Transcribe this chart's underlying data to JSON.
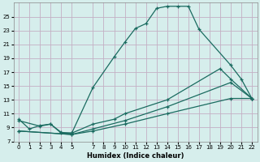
{
  "xlabel": "Humidex (Indice chaleur)",
  "bg_color": "#d6eeec",
  "grid_color": "#c4afc4",
  "line_color": "#1a6b60",
  "xlim": [
    -0.5,
    22.5
  ],
  "ylim": [
    7,
    27
  ],
  "xticks": [
    0,
    1,
    2,
    3,
    4,
    5,
    7,
    8,
    9,
    10,
    11,
    12,
    13,
    14,
    15,
    16,
    17,
    18,
    19,
    20,
    21,
    22
  ],
  "yticks": [
    7,
    9,
    11,
    13,
    15,
    17,
    19,
    21,
    23,
    25
  ],
  "series1_x": [
    0,
    1,
    2,
    3,
    4,
    5,
    7,
    9,
    10,
    11,
    12,
    13,
    14,
    15,
    16,
    17,
    20,
    21,
    22
  ],
  "series1_y": [
    10.2,
    8.8,
    9.3,
    9.5,
    8.3,
    8.2,
    14.8,
    19.2,
    21.3,
    23.3,
    24.0,
    26.2,
    26.5,
    26.5,
    26.5,
    23.2,
    18.0,
    16.0,
    13.2
  ],
  "series2_x": [
    0,
    2,
    3,
    4,
    5,
    7,
    9,
    10,
    14,
    19,
    20,
    22
  ],
  "series2_y": [
    10.0,
    9.2,
    9.5,
    8.2,
    8.2,
    9.5,
    10.2,
    11.0,
    13.0,
    17.5,
    16.0,
    13.2
  ],
  "series3_x": [
    0,
    5,
    7,
    10,
    14,
    20,
    22
  ],
  "series3_y": [
    8.5,
    8.0,
    8.8,
    10.0,
    12.0,
    15.5,
    13.2
  ],
  "series4_x": [
    0,
    5,
    7,
    10,
    14,
    20,
    22
  ],
  "series4_y": [
    8.5,
    8.0,
    8.5,
    9.5,
    11.0,
    13.2,
    13.2
  ]
}
